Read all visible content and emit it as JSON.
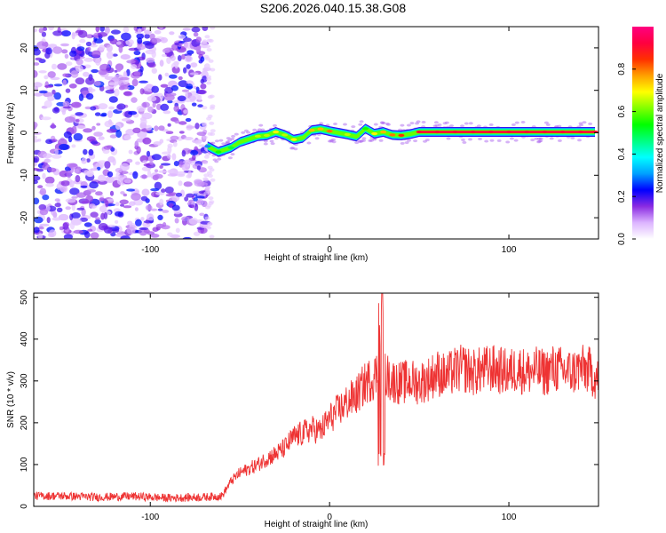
{
  "figure": {
    "title": "S206.2026.040.15.38.G08"
  },
  "chart_data": [
    {
      "type": "heatmap",
      "panel": "spectrogram",
      "xlabel": "Height of straight line (km)",
      "ylabel": "Frequency (Hz)",
      "xlim": [
        -165,
        150
      ],
      "ylim": [
        -25,
        25
      ],
      "x_ticks": [
        -100,
        0,
        100
      ],
      "y_ticks": [
        -20,
        -10,
        0,
        10,
        20
      ],
      "colorbar": {
        "label": "Normalized spectral amplitude",
        "range": [
          0,
          1
        ],
        "ticks": [
          0.0,
          0.2,
          0.4,
          0.6,
          0.8
        ],
        "colors": [
          "#ffffff",
          "#dcb4ff",
          "#8a2be2",
          "#0000ff",
          "#00a0ff",
          "#00ffff",
          "#00ff80",
          "#00ff00",
          "#80ff00",
          "#ffff00",
          "#ffa000",
          "#ff3000",
          "#ff0040",
          "#ff0080"
        ]
      },
      "noise_region": {
        "x_range": [
          -165,
          -68
        ],
        "amplitude": [
          0.05,
          0.25
        ]
      },
      "signal_ridge": {
        "x": [
          -68,
          -62,
          -55,
          -50,
          -45,
          -40,
          -35,
          -30,
          -25,
          -20,
          -15,
          -10,
          -5,
          0,
          5,
          10,
          15,
          20,
          25,
          30,
          35,
          40,
          45,
          50,
          60,
          70,
          80,
          90,
          100,
          110,
          120,
          130,
          140,
          148
        ],
        "freq": [
          -3.2,
          -4.5,
          -3.5,
          -2.2,
          -1.5,
          -0.8,
          -0.6,
          0.2,
          -0.5,
          -1.6,
          -1.2,
          0.6,
          0.9,
          0.4,
          0.0,
          -0.4,
          -0.9,
          1.0,
          -0.2,
          0.2,
          -0.5,
          -0.6,
          -0.3,
          0.2,
          0.2,
          0.2,
          0.2,
          0.2,
          0.2,
          0.2,
          0.2,
          0.2,
          0.2,
          0.2
        ],
        "amplitude": [
          0.3,
          0.55,
          0.5,
          0.6,
          0.6,
          0.65,
          0.65,
          0.7,
          0.65,
          0.7,
          0.6,
          0.75,
          0.75,
          0.8,
          0.6,
          0.65,
          0.6,
          0.55,
          0.7,
          0.75,
          0.8,
          0.85,
          0.6,
          0.9,
          0.9,
          0.9,
          0.9,
          0.9,
          0.9,
          0.9,
          0.9,
          0.9,
          0.9,
          0.9
        ]
      }
    },
    {
      "type": "line",
      "panel": "snr",
      "xlabel": "Height of straight line (km)",
      "ylabel": "SNR (10 * v/v)",
      "xlim": [
        -165,
        150
      ],
      "ylim": [
        0,
        510
      ],
      "x_ticks": [
        -100,
        0,
        100
      ],
      "y_ticks": [
        0,
        100,
        200,
        300,
        400,
        500
      ],
      "series": [
        {
          "name": "SNR",
          "color": "#ee3333",
          "x": [
            -165,
            -150,
            -130,
            -110,
            -90,
            -70,
            -60,
            -55,
            -50,
            -45,
            -40,
            -35,
            -30,
            -25,
            -20,
            -15,
            -10,
            -5,
            0,
            5,
            10,
            15,
            20,
            25,
            28,
            30,
            35,
            40,
            45,
            50,
            55,
            60,
            65,
            70,
            75,
            80,
            85,
            90,
            95,
            100,
            105,
            110,
            115,
            120,
            125,
            130,
            135,
            140,
            145,
            150
          ],
          "values": [
            25,
            25,
            22,
            24,
            20,
            22,
            25,
            60,
            80,
            90,
            100,
            115,
            125,
            140,
            165,
            175,
            185,
            180,
            210,
            230,
            250,
            265,
            295,
            310,
            330,
            320,
            300,
            295,
            300,
            295,
            305,
            320,
            310,
            325,
            330,
            320,
            325,
            330,
            325,
            320,
            330,
            320,
            325,
            320,
            330,
            325,
            320,
            330,
            325,
            300
          ]
        }
      ]
    }
  ]
}
